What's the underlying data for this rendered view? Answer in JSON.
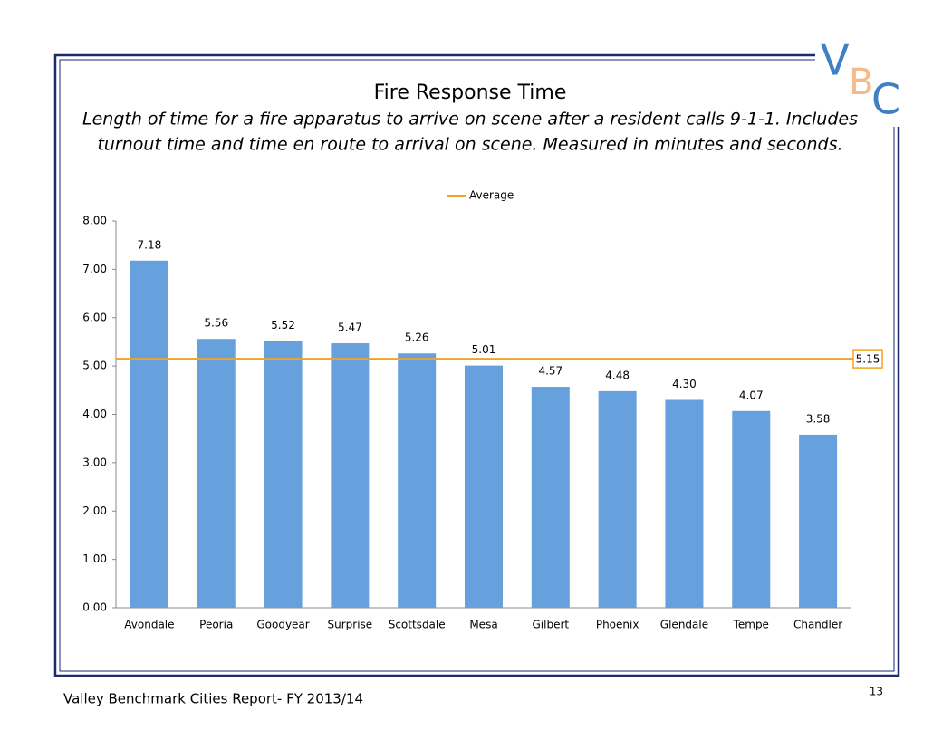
{
  "logo": [
    "V",
    "B",
    "C"
  ],
  "footer": "Valley Benchmark Cities Report- FY 2013/14",
  "page_number": "13",
  "chart_data": {
    "type": "bar",
    "title": "Fire Response Time",
    "subtitle": [
      "Length of time for a fire apparatus to arrive on scene after a resident calls 9-1-1.  Includes",
      "turnout time and time en route to arrival on scene.  Measured in minutes and seconds."
    ],
    "categories": [
      "Avondale",
      "Peoria",
      "Goodyear",
      "Surprise",
      "Scottsdale",
      "Mesa",
      "Gilbert",
      "Phoenix",
      "Glendale",
      "Tempe",
      "Chandler"
    ],
    "values": [
      7.18,
      5.56,
      5.52,
      5.47,
      5.26,
      5.01,
      4.57,
      4.48,
      4.3,
      4.07,
      3.58
    ],
    "value_labels": [
      "7.18",
      "5.56",
      "5.52",
      "5.47",
      "5.26",
      "5.01",
      "4.57",
      "4.48",
      "4.30",
      "4.07",
      "3.58"
    ],
    "color": "#66a0dd",
    "average": {
      "name": "Average",
      "value": 5.15,
      "color": "#f5a21f"
    },
    "ylim": [
      0,
      8
    ],
    "yticks": [
      {
        "value": 0,
        "label": "0.00"
      },
      {
        "value": 1,
        "label": "1.00"
      },
      {
        "value": 2,
        "label": "2.00"
      },
      {
        "value": 3,
        "label": "3.00"
      },
      {
        "value": 4,
        "label": "4.00"
      },
      {
        "value": 5,
        "label": "5.00"
      },
      {
        "value": 6,
        "label": "6.00"
      },
      {
        "value": 7,
        "label": "7.00"
      },
      {
        "value": 8,
        "label": "8.00"
      }
    ]
  }
}
